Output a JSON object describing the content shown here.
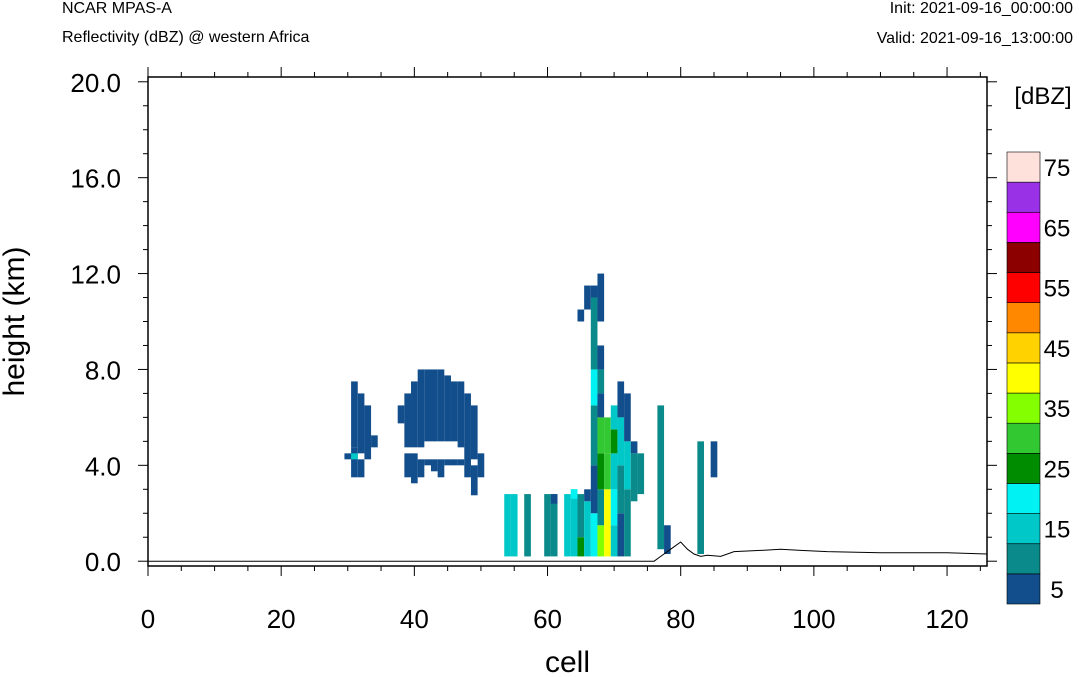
{
  "header": {
    "title": "NCAR MPAS-A",
    "subtitle": "Reflectivity (dBZ) @ western Africa",
    "init": "Init: 2021-09-16_00:00:00",
    "valid": "Valid: 2021-09-16_13:00:00"
  },
  "colors": {
    "levels": [
      "#124e8c",
      "#0a8a8a",
      "#00c8c8",
      "#00f2f2",
      "#008c00",
      "#32c832",
      "#84ff00",
      "#ffff00",
      "#ffd200",
      "#ff8800",
      "#ff0000",
      "#8c0000",
      "#ff00ff",
      "#9932e6",
      "#ffe1dc"
    ]
  },
  "chart_data": {
    "type": "heatmap",
    "title": "NCAR MPAS-A",
    "subtitle": "Reflectivity (dBZ) @ western Africa",
    "xlabel": "cell",
    "ylabel": "height (km)",
    "xlim": [
      0,
      126
    ],
    "ylim": [
      -0.2,
      20.2
    ],
    "xticks": [
      0,
      20,
      40,
      60,
      80,
      100,
      120
    ],
    "xtick_labels": [
      "0",
      "20",
      "40",
      "60",
      "80",
      "100",
      "120"
    ],
    "yticks": [
      0,
      4,
      8,
      12,
      16,
      20
    ],
    "ytick_labels": [
      "0.0",
      "4.0",
      "8.0",
      "12.0",
      "16.0",
      "20.0"
    ],
    "colorbar": {
      "title": "[dBZ]",
      "levels": [
        5,
        10,
        15,
        20,
        25,
        30,
        35,
        40,
        45,
        50,
        55,
        60,
        65,
        70,
        75
      ],
      "labels": [
        "5",
        "15",
        "25",
        "35",
        "45",
        "55",
        "65",
        "75"
      ]
    },
    "terrain": [
      [
        0,
        0
      ],
      [
        76,
        0
      ],
      [
        77,
        0.2
      ],
      [
        79,
        0.6
      ],
      [
        80,
        0.8
      ],
      [
        81,
        0.5
      ],
      [
        82,
        0.3
      ],
      [
        83,
        0.2
      ],
      [
        84,
        0.25
      ],
      [
        86,
        0.2
      ],
      [
        88,
        0.4
      ],
      [
        92,
        0.45
      ],
      [
        95,
        0.5
      ],
      [
        98,
        0.45
      ],
      [
        102,
        0.4
      ],
      [
        110,
        0.35
      ],
      [
        120,
        0.35
      ],
      [
        126,
        0.3
      ]
    ],
    "cells": [
      [
        30,
        4.25,
        4.5,
        0
      ],
      [
        31,
        3.5,
        4.75,
        0
      ],
      [
        31,
        4.25,
        4.5,
        2
      ],
      [
        31,
        4.75,
        7.5,
        0
      ],
      [
        32,
        3.5,
        4.25,
        0
      ],
      [
        32,
        4.5,
        7.0,
        0
      ],
      [
        33,
        4.25,
        6.5,
        0
      ],
      [
        34,
        4.75,
        5.25,
        0
      ],
      [
        38,
        5.75,
        6.5,
        0
      ],
      [
        39,
        3.5,
        4.5,
        0
      ],
      [
        39,
        4.75,
        7.0,
        0
      ],
      [
        40,
        3.25,
        4.5,
        0
      ],
      [
        40,
        4.75,
        7.5,
        0
      ],
      [
        41,
        3.5,
        4.25,
        0
      ],
      [
        41,
        4.75,
        8.0,
        0
      ],
      [
        42,
        4.0,
        4.25,
        0
      ],
      [
        42,
        5.0,
        8.0,
        0
      ],
      [
        43,
        3.75,
        4.25,
        0
      ],
      [
        43,
        5.0,
        8.0,
        0
      ],
      [
        44,
        3.5,
        4.25,
        0
      ],
      [
        44,
        5.0,
        8.0,
        0
      ],
      [
        45,
        4.0,
        4.25,
        0
      ],
      [
        45,
        5.0,
        7.75,
        0
      ],
      [
        46,
        4.0,
        4.25,
        0
      ],
      [
        46,
        5.0,
        7.5,
        0
      ],
      [
        47,
        4.0,
        4.25,
        0
      ],
      [
        47,
        4.75,
        7.5,
        0
      ],
      [
        48,
        3.5,
        7.0,
        0
      ],
      [
        49,
        2.75,
        4.0,
        0
      ],
      [
        49,
        4.25,
        6.5,
        0
      ],
      [
        50,
        3.5,
        4.5,
        0
      ],
      [
        54,
        0.2,
        2.8,
        2
      ],
      [
        55,
        0.2,
        2.8,
        2
      ],
      [
        57,
        0.2,
        2.8,
        1
      ],
      [
        60,
        0.2,
        2.8,
        1
      ],
      [
        61,
        0.2,
        2.8,
        1
      ],
      [
        61,
        2.4,
        2.8,
        0
      ],
      [
        63,
        0.2,
        2.8,
        2
      ],
      [
        64,
        0.2,
        3.0,
        2
      ],
      [
        64,
        2.6,
        3.0,
        3
      ],
      [
        65,
        0.2,
        1.0,
        4
      ],
      [
        65,
        1.0,
        2.8,
        1
      ],
      [
        66,
        0.2,
        2.5,
        2
      ],
      [
        66,
        2.5,
        3.0,
        0
      ],
      [
        67,
        0.2,
        2.0,
        3
      ],
      [
        67,
        2.0,
        4.0,
        0
      ],
      [
        67,
        4.0,
        6.5,
        1
      ],
      [
        67,
        6.5,
        8.0,
        3
      ],
      [
        67,
        8.0,
        11.0,
        1
      ],
      [
        67,
        11.0,
        11.5,
        0
      ],
      [
        66,
        10.5,
        11.5,
        0
      ],
      [
        65,
        10.0,
        10.5,
        0
      ],
      [
        68,
        0.2,
        1.5,
        6
      ],
      [
        68,
        1.5,
        3.0,
        1
      ],
      [
        68,
        3.0,
        4.5,
        4
      ],
      [
        68,
        4.5,
        6.0,
        5
      ],
      [
        68,
        6.0,
        7.0,
        0
      ],
      [
        68,
        7.0,
        8.0,
        1
      ],
      [
        68,
        8.0,
        9.0,
        0
      ],
      [
        68,
        10.0,
        12.0,
        0
      ],
      [
        69,
        0.2,
        3.0,
        7
      ],
      [
        69,
        3.0,
        4.5,
        5
      ],
      [
        69,
        4.5,
        6.0,
        5
      ],
      [
        70,
        0.2,
        1.5,
        2
      ],
      [
        70,
        1.5,
        3.0,
        3
      ],
      [
        70,
        3.0,
        4.5,
        2
      ],
      [
        70,
        4.5,
        5.5,
        4
      ],
      [
        70,
        5.5,
        6.5,
        2
      ],
      [
        71,
        0.2,
        2.0,
        0
      ],
      [
        71,
        2.0,
        4.0,
        1
      ],
      [
        71,
        4.0,
        6.0,
        2
      ],
      [
        71,
        6.0,
        7.5,
        0
      ],
      [
        72,
        0.2,
        3.0,
        1
      ],
      [
        72,
        3.0,
        5.0,
        2
      ],
      [
        72,
        5.0,
        7.0,
        0
      ],
      [
        73,
        2.5,
        4.5,
        1
      ],
      [
        73,
        4.5,
        5.0,
        0
      ],
      [
        74,
        2.8,
        4.5,
        1
      ],
      [
        77,
        0.5,
        6.5,
        1
      ],
      [
        78,
        0.3,
        1.5,
        0
      ],
      [
        83,
        0.3,
        5.0,
        1
      ],
      [
        85,
        3.5,
        5.0,
        0
      ]
    ]
  }
}
